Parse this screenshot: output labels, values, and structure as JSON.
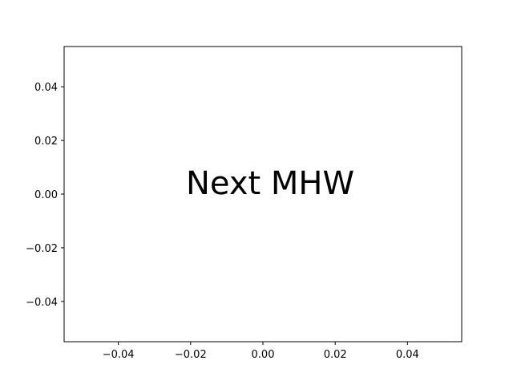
{
  "chart_data": {
    "type": "scatter",
    "title": "",
    "xlabel": "",
    "ylabel": "",
    "xlim": [
      -0.055,
      0.055
    ],
    "ylim": [
      -0.055,
      0.055
    ],
    "x_ticks": [
      -0.04,
      -0.02,
      0.0,
      0.02,
      0.04
    ],
    "x_tick_labels": [
      "−0.04",
      "−0.02",
      "0.00",
      "0.02",
      "0.04"
    ],
    "y_ticks": [
      -0.04,
      -0.02,
      0.0,
      0.02,
      0.04
    ],
    "y_tick_labels": [
      "−0.04",
      "−0.02",
      "0.00",
      "0.02",
      "0.04"
    ],
    "grid": false,
    "series": [],
    "annotations": [
      {
        "text": "Next MHW",
        "x": 0.002,
        "y": 0.0
      }
    ]
  }
}
